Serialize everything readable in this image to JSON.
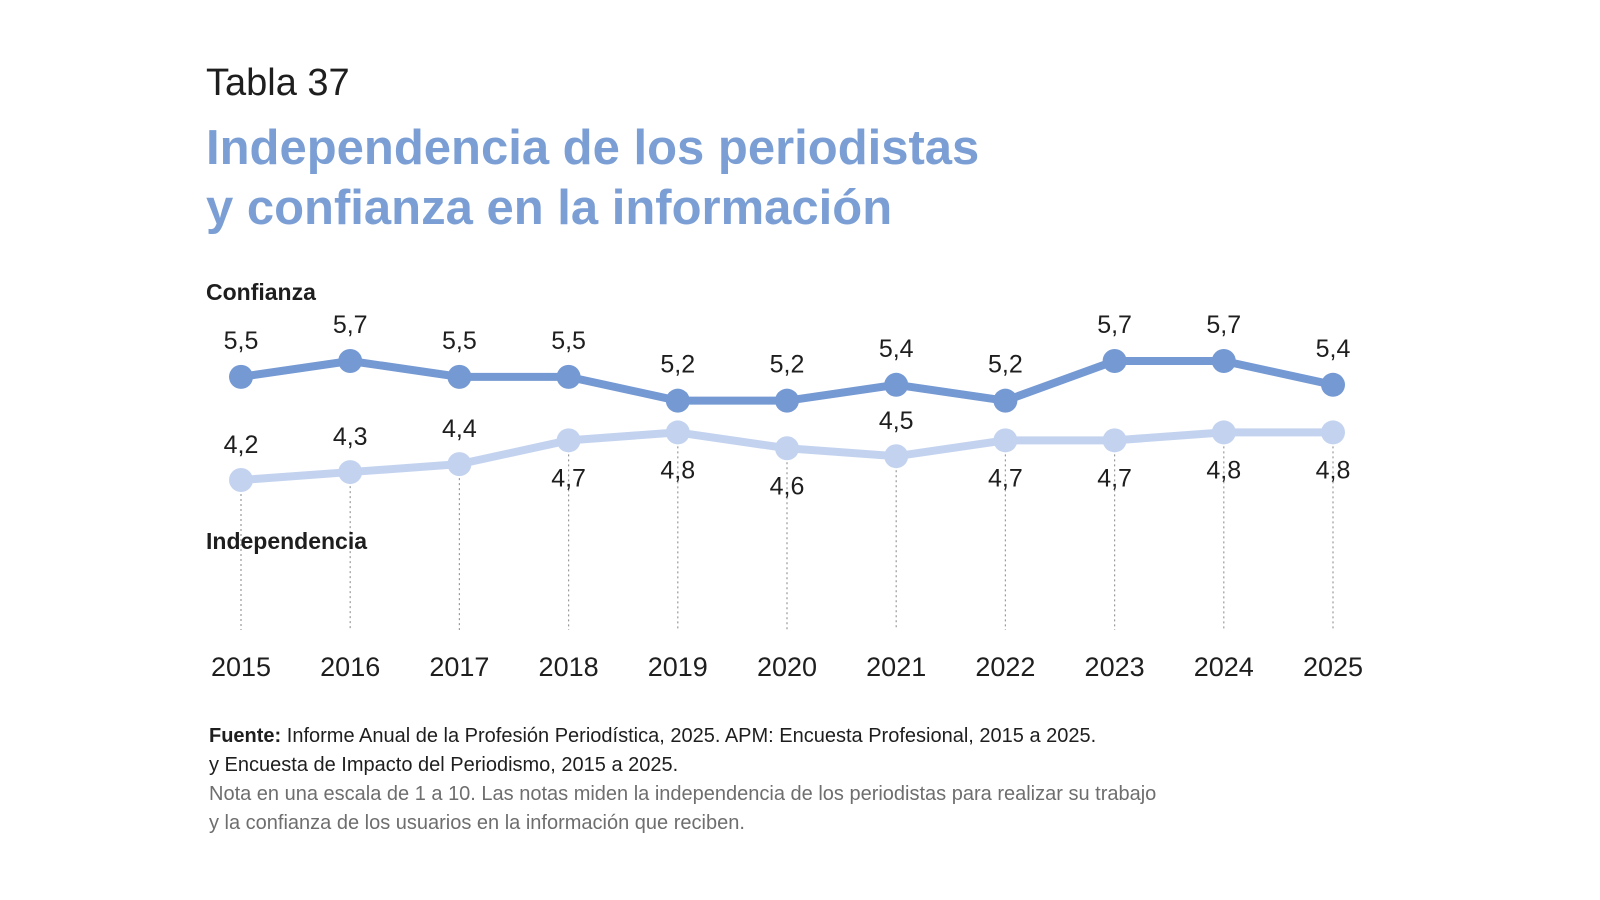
{
  "header": {
    "table_number": "Tabla 37",
    "title_line1": "Independencia de los periodistas",
    "title_line2": "y confianza en la información"
  },
  "chart_data": {
    "type": "line",
    "x": [
      "2015",
      "2016",
      "2017",
      "2018",
      "2019",
      "2020",
      "2021",
      "2022",
      "2023",
      "2024",
      "2025"
    ],
    "ylim": [
      4.0,
      6.0
    ],
    "grid": false,
    "series": [
      {
        "name": "Confianza",
        "values": [
          5.5,
          5.7,
          5.5,
          5.5,
          5.2,
          5.2,
          5.4,
          5.2,
          5.7,
          5.7,
          5.4
        ],
        "labels": [
          "5,5",
          "5,7",
          "5,5",
          "5,5",
          "5,2",
          "5,2",
          "5,4",
          "5,2",
          "5,7",
          "5,7",
          "5,4"
        ],
        "color": "#7599d3"
      },
      {
        "name": "Independencia",
        "values": [
          4.2,
          4.3,
          4.4,
          4.7,
          4.8,
          4.6,
          4.5,
          4.7,
          4.7,
          4.8,
          4.8
        ],
        "labels": [
          "4,2",
          "4,3",
          "4,4",
          "4,7",
          "4,8",
          "4,6",
          "4,5",
          "4,7",
          "4,7",
          "4,8",
          "4,8"
        ],
        "color": "#c3d3ef"
      }
    ]
  },
  "footer": {
    "source_label": "Fuente:",
    "source_text": " Informe Anual de la Profesión Periodística, 2025. APM: Encuesta Profesional, 2015 a 2025.",
    "source_line2": "y Encuesta de Impacto del Periodismo, 2015 a 2025.",
    "note_line1": "Nota en una escala de 1 a 10. Las notas miden la independencia de los periodistas para realizar su trabajo",
    "note_line2": "y la confianza de los usuarios en la información que reciben."
  }
}
